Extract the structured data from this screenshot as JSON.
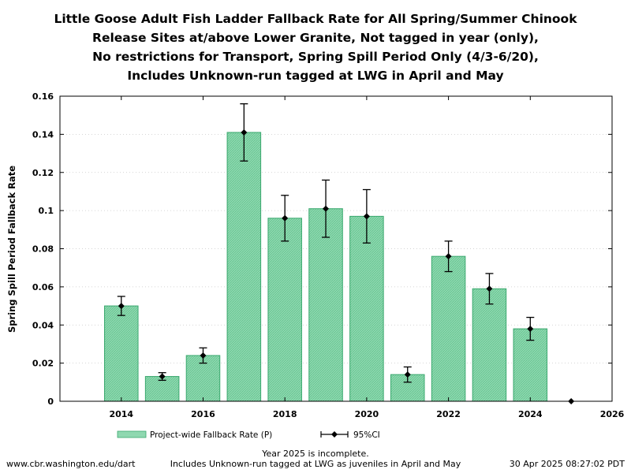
{
  "chart_data": {
    "type": "bar",
    "title_lines": [
      "Little Goose Adult Fish Ladder Fallback Rate for All Spring/Summer Chinook",
      "Release Sites at/above Lower Granite, Not tagged in year (only),",
      "No restrictions for Transport, Spring Spill Period Only (4/3-6/20),",
      "Includes Unknown-run tagged at LWG in April and May"
    ],
    "xlabel": "",
    "ylabel": "Spring Spill Period Fallback Rate",
    "xlim": [
      2012.5,
      2026
    ],
    "ylim": [
      0,
      0.16
    ],
    "x_ticks": [
      2014,
      2016,
      2018,
      2020,
      2022,
      2024,
      2026
    ],
    "y_ticks": [
      0,
      0.02,
      0.04,
      0.06,
      0.08,
      0.1,
      0.12,
      0.14,
      0.16
    ],
    "grid": true,
    "legend_position": "bottom",
    "series": [
      {
        "name": "Project-wide Fallback Rate (P)",
        "kind": "bar",
        "color": "#7fd1a4",
        "edge_color": "#3aa86e",
        "x": [
          2014,
          2015,
          2016,
          2017,
          2018,
          2019,
          2020,
          2021,
          2022,
          2023,
          2024,
          2025
        ],
        "values": [
          0.05,
          0.013,
          0.024,
          0.141,
          0.096,
          0.101,
          0.097,
          0.014,
          0.076,
          0.059,
          0.038,
          0.0
        ]
      },
      {
        "name": "95%CI",
        "kind": "errorbar",
        "color": "#000000",
        "x": [
          2014,
          2015,
          2016,
          2017,
          2018,
          2019,
          2020,
          2021,
          2022,
          2023,
          2024,
          2025
        ],
        "values": [
          0.05,
          0.013,
          0.024,
          0.141,
          0.096,
          0.101,
          0.097,
          0.014,
          0.076,
          0.059,
          0.038,
          0.0
        ],
        "lower": [
          0.045,
          0.011,
          0.02,
          0.126,
          0.084,
          0.086,
          0.083,
          0.01,
          0.068,
          0.051,
          0.032,
          0.0
        ],
        "upper": [
          0.055,
          0.015,
          0.028,
          0.156,
          0.108,
          0.116,
          0.111,
          0.018,
          0.084,
          0.067,
          0.044,
          0.0
        ]
      }
    ]
  },
  "footer": {
    "left": "www.cbr.washington.edu/dart",
    "center_lines": [
      "Year 2025 is incomplete.",
      "Includes Unknown-run tagged at LWG as juveniles in April and May"
    ],
    "right": "30 Apr 2025 08:27:02 PDT"
  }
}
